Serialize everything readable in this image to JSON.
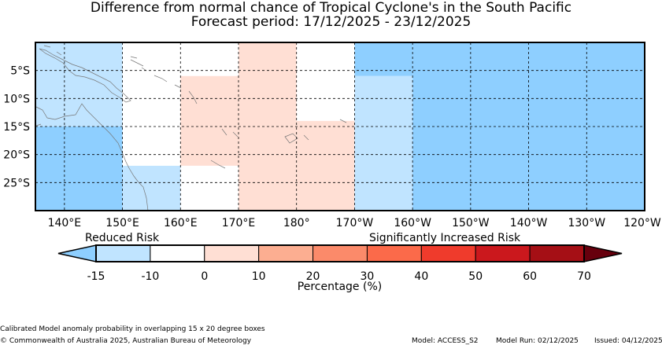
{
  "title_line1": "Difference from normal chance of Tropical Cyclone's in the South Pacific",
  "title_line2": "Forecast period: 17/12/2025 - 23/12/2025",
  "lat_ticks": [
    "5°S",
    "10°S",
    "15°S",
    "20°S",
    "25°S"
  ],
  "lon_ticks": [
    "140°E",
    "150°E",
    "160°E",
    "170°E",
    "180°",
    "170°W",
    "160°W",
    "150°W",
    "140°W",
    "130°W",
    "120°W"
  ],
  "colors": {
    "c_-15": "#8ecfff",
    "c_-10": "#c0e4ff",
    "c_0": "#ffffff",
    "c_10": "#ffdfd4",
    "c_20": "#fcae91",
    "c_30": "#fb8a6a",
    "c_40": "#fb6a4a",
    "c_50": "#ef3b2c",
    "c_60": "#cb181d",
    "c_70": "#a50f15",
    "c_max": "#67000d"
  },
  "cells": [
    {
      "lon": [
        135,
        150
      ],
      "lat": [
        -15,
        -30
      ],
      "class": "c_-15"
    },
    {
      "lon": [
        135,
        150
      ],
      "lat": [
        0,
        -15
      ],
      "class": "c_-10"
    },
    {
      "lon": [
        150,
        160
      ],
      "lat": [
        0,
        -22
      ],
      "class": "c_0"
    },
    {
      "lon": [
        150,
        160
      ],
      "lat": [
        -22,
        -30
      ],
      "class": "c_-10"
    },
    {
      "lon": [
        160,
        170
      ],
      "lat": [
        0,
        -6
      ],
      "class": "c_0"
    },
    {
      "lon": [
        160,
        170
      ],
      "lat": [
        -6,
        -22
      ],
      "class": "c_10"
    },
    {
      "lon": [
        160,
        170
      ],
      "lat": [
        -22,
        -30
      ],
      "class": "c_0"
    },
    {
      "lon": [
        170,
        180
      ],
      "lat": [
        0,
        -30
      ],
      "class": "c_10"
    },
    {
      "lon": [
        180,
        190
      ],
      "lat": [
        0,
        -14
      ],
      "class": "c_0"
    },
    {
      "lon": [
        180,
        190
      ],
      "lat": [
        -14,
        -30
      ],
      "class": "c_10"
    },
    {
      "lon": [
        190,
        200
      ],
      "lat": [
        0,
        -6
      ],
      "class": "c_-15"
    },
    {
      "lon": [
        190,
        200
      ],
      "lat": [
        -6,
        -30
      ],
      "class": "c_-10"
    },
    {
      "lon": [
        200,
        240
      ],
      "lat": [
        0,
        -30
      ],
      "class": "c_-15"
    }
  ],
  "colorbar": {
    "left_label": "Reduced Risk",
    "right_label": "Significantly Increased Risk",
    "tick_labels": [
      "-15",
      "-10",
      "0",
      "10",
      "20",
      "30",
      "40",
      "50",
      "60",
      "70"
    ],
    "xlabel": "Percentage (%)",
    "segments": [
      "c_-10",
      "c_0",
      "c_10",
      "c_20",
      "c_30",
      "c_40",
      "c_50",
      "c_60",
      "c_70"
    ],
    "under": "c_-15",
    "over": "c_max"
  },
  "footer": {
    "note": "Calibrated Model anomaly probability in overlapping 15 x 20 degree boxes",
    "copyright": "© Commonwealth of Australia 2025, Australian Bureau of Meteorology",
    "model": "Model: ACCESS_S2",
    "run": "Model Run: 02/12/2025",
    "issued": "Issued: 04/12/2025"
  }
}
